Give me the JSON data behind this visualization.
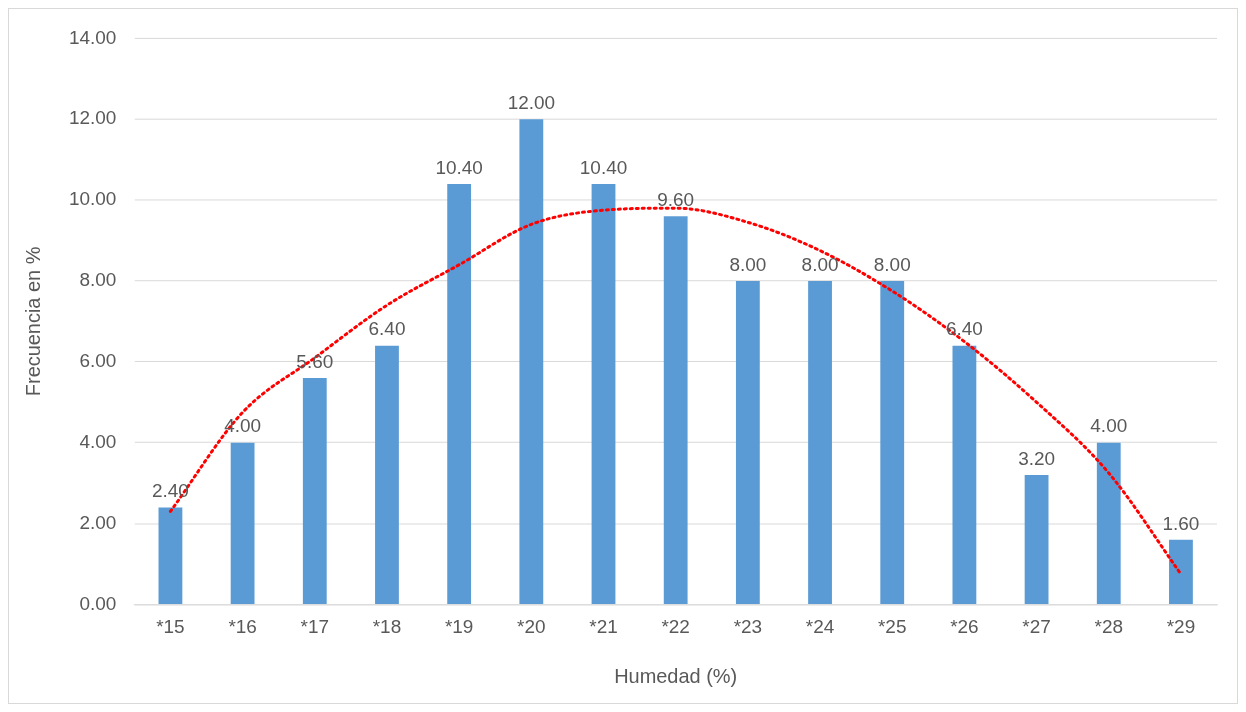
{
  "chart_data": {
    "type": "bar",
    "xlabel": "Humedad (%)",
    "ylabel": "Frecuencia en %",
    "categories": [
      "*15",
      "*16",
      "*17",
      "*18",
      "*19",
      "*20",
      "*21",
      "*22",
      "*23",
      "*24",
      "*25",
      "*26",
      "*27",
      "*28",
      "*29"
    ],
    "series": [
      {
        "color": "#5b9bd5",
        "values": [
          2.4,
          4.0,
          5.6,
          6.4,
          10.4,
          12.0,
          10.4,
          9.6,
          8.0,
          8.0,
          8.0,
          6.4,
          3.2,
          4.0,
          1.6
        ],
        "value_labels": [
          "2.40",
          "4.00",
          "5.60",
          "6.40",
          "10.40",
          "12.00",
          "10.40",
          "9.60",
          "8.00",
          "8.00",
          "8.00",
          "6.40",
          "3.20",
          "4.00",
          "1.60"
        ]
      },
      {
        "type": "line",
        "color": "#ff0000",
        "line_style": "dotted",
        "marker": "none",
        "x": [
          "*15",
          "*16",
          "*17",
          "*18",
          "*19",
          "*20",
          "*21",
          "*22",
          "*23",
          "*24",
          "*25",
          "*26",
          "*27",
          "*28",
          "*29"
        ],
        "values": [
          2.3,
          4.75,
          6.1,
          7.4,
          8.4,
          9.4,
          9.75,
          9.8,
          9.45,
          8.75,
          7.75,
          6.5,
          5.0,
          3.25,
          0.75
        ]
      }
    ],
    "ylim": [
      0,
      14
    ],
    "yticks": [
      {
        "value": 0,
        "label": "0.00"
      },
      {
        "value": 2,
        "label": "2.00"
      },
      {
        "value": 4,
        "label": "4.00"
      },
      {
        "value": 6,
        "label": "6.00"
      },
      {
        "value": 8,
        "label": "8.00"
      },
      {
        "value": 10,
        "label": "10.00"
      },
      {
        "value": 12,
        "label": "12.00"
      },
      {
        "value": 14,
        "label": "14.00"
      }
    ],
    "grid": "y",
    "legend": false
  }
}
